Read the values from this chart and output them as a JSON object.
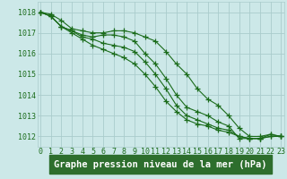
{
  "x": [
    0,
    1,
    2,
    3,
    4,
    5,
    6,
    7,
    8,
    9,
    10,
    11,
    12,
    13,
    14,
    15,
    16,
    17,
    18,
    19,
    20,
    21,
    22,
    23
  ],
  "series": [
    [
      1018.0,
      1017.9,
      1017.6,
      1017.2,
      1017.1,
      1017.0,
      1017.0,
      1017.1,
      1017.1,
      1017.0,
      1016.8,
      1016.6,
      1016.1,
      1015.5,
      1015.0,
      1014.3,
      1013.8,
      1013.5,
      1013.0,
      1012.4,
      1012.0,
      1012.0,
      1012.1,
      1012.0
    ],
    [
      1018.0,
      1017.8,
      1017.3,
      1017.1,
      1016.9,
      1016.8,
      1016.9,
      1016.9,
      1016.8,
      1016.6,
      1016.0,
      1015.5,
      1014.8,
      1014.0,
      1013.4,
      1013.2,
      1013.0,
      1012.7,
      1012.5,
      1011.9,
      1011.9,
      1011.9,
      1012.1,
      1012.0
    ],
    [
      1018.0,
      1017.8,
      1017.3,
      1017.1,
      1016.8,
      1016.7,
      1016.5,
      1016.4,
      1016.3,
      1016.1,
      1015.6,
      1015.0,
      1014.3,
      1013.5,
      1013.0,
      1012.8,
      1012.6,
      1012.4,
      1012.3,
      1012.0,
      1011.9,
      1011.9,
      1012.0,
      1012.0
    ],
    [
      1018.0,
      1017.8,
      1017.3,
      1017.0,
      1016.7,
      1016.4,
      1016.2,
      1016.0,
      1015.8,
      1015.5,
      1015.0,
      1014.4,
      1013.7,
      1013.2,
      1012.8,
      1012.6,
      1012.5,
      1012.3,
      1012.2,
      1012.0,
      1011.9,
      1011.9,
      1012.0,
      1012.0
    ]
  ],
  "line_color": "#1a6b1a",
  "marker": "+",
  "markersize": 4,
  "linewidth": 0.8,
  "xlabel": "Graphe pression niveau de la mer (hPa)",
  "xlabel_fontsize": 7.5,
  "xlabel_color": "#1a6b1a",
  "ytick_labels": [
    "1018",
    "1017",
    "1016",
    "1015",
    "1014",
    "1013",
    "1012"
  ],
  "ytick_values": [
    1018,
    1017,
    1016,
    1015,
    1014,
    1013,
    1012
  ],
  "ylim": [
    1011.5,
    1018.5
  ],
  "xlim": [
    -0.3,
    23.3
  ],
  "bg_color": "#cce8e8",
  "grid_color": "#aacccc",
  "tick_fontsize": 6,
  "tick_color": "#1a6b1a",
  "label_bg": "#2d6e2d",
  "xlabel_bg": "#2d6e2d"
}
